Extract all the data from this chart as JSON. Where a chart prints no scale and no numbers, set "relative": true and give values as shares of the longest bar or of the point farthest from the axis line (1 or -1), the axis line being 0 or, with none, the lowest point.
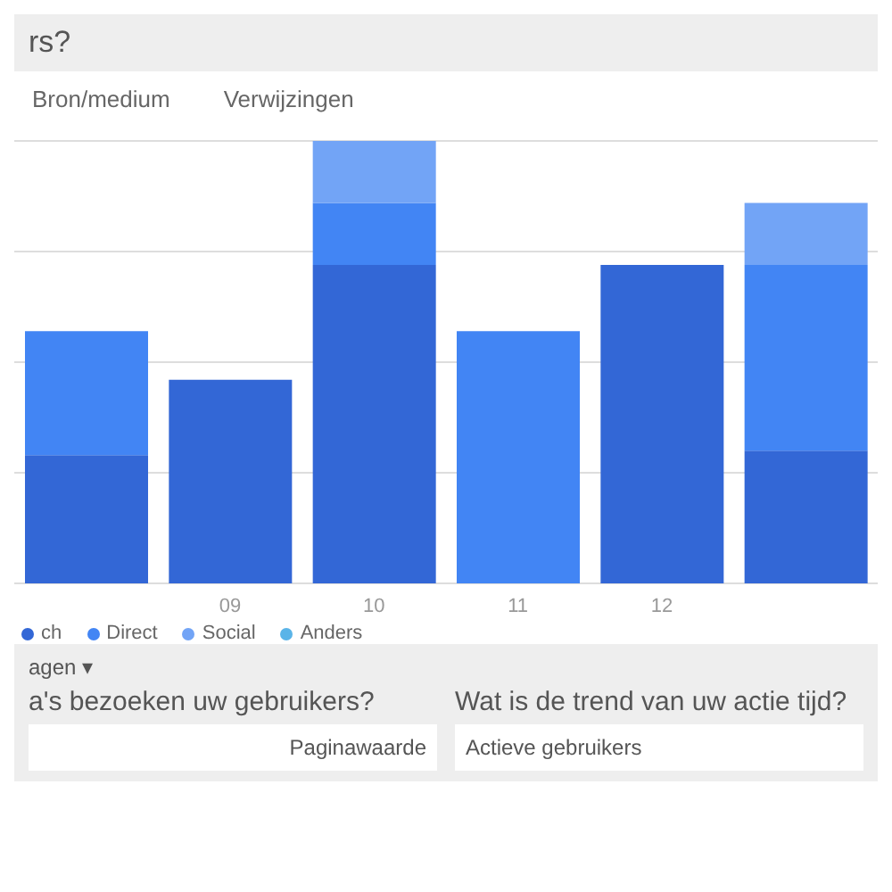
{
  "chart_data": {
    "type": "bar",
    "stacked": true,
    "relative": true,
    "title": "rs?",
    "categories": [
      null,
      "09",
      "10",
      "11",
      "12",
      null
    ],
    "series": [
      {
        "name": "ch",
        "color": "#3367d6",
        "values": [
          0.29,
          0.46,
          0.72,
          0,
          0.72,
          0.3
        ]
      },
      {
        "name": "Direct",
        "color": "#4285f4",
        "values": [
          0.28,
          0,
          0.14,
          0.57,
          0,
          0.42
        ]
      },
      {
        "name": "Social",
        "color": "#72a4f6",
        "values": [
          0,
          0,
          0.14,
          0,
          0,
          0.14
        ]
      },
      {
        "name": "Anders",
        "color": "#5ab4e8",
        "values": [
          0,
          0,
          0,
          0,
          0,
          0
        ]
      }
    ],
    "grid": "y",
    "legend": "bottom left",
    "annotations": [
      "Bron/medium",
      "Verwijzingen",
      "agen ▾",
      "a's bezoeken uw gebruikers?",
      "Wat is de trend van uw actie tijd?",
      "Actieve gebruikers",
      "Paginawaarde"
    ]
  }
}
